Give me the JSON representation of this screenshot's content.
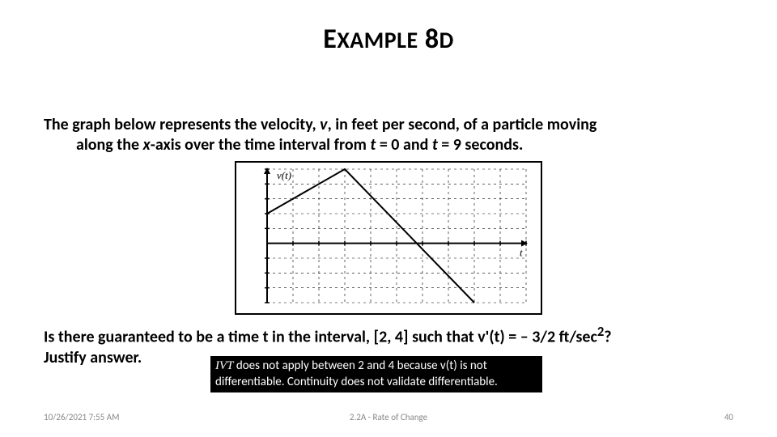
{
  "title": {
    "prefix": "E",
    "xample": "XAMPLE",
    "space": " ",
    "eight": "8",
    "d": "D"
  },
  "para1": {
    "t1": "The graph below represents the velocity, ",
    "v": "v",
    "t2": ", in feet per second, of a particle moving",
    "t3": "along the ",
    "x": "x",
    "t4": "-axis over the time interval from ",
    "t5": " = 0 and ",
    "t6": " = 9 seconds.",
    "tvar": "t"
  },
  "chart": {
    "type": "line",
    "border_color": "#000000",
    "bg_color": "#ffffff",
    "grid_color": "#000000",
    "axis_color": "#000000",
    "line_color": "#000000",
    "line_width": 2,
    "xlim": [
      0,
      10
    ],
    "ylim": [
      -4,
      5
    ],
    "x_ticks": [
      0,
      1,
      2,
      3,
      4,
      5,
      6,
      7,
      8,
      9,
      10
    ],
    "y_ticks": [
      -4,
      -3,
      -2,
      -1,
      0,
      1,
      2,
      3,
      4,
      5
    ],
    "x_label": "t",
    "y_axis_label": "v(t)",
    "points": [
      {
        "x": 0,
        "y": 2
      },
      {
        "x": 3,
        "y": 5
      },
      {
        "x": 8,
        "y": -4
      }
    ]
  },
  "para2": {
    "t1": "Is there guaranteed to be a time t in the interval, [2, 4] such that ",
    "vprime": "v'",
    "t2": "(t) = – 3/2 ft/sec",
    "sq": "2",
    "t3": "?",
    "t4": "Justify answer."
  },
  "answer": {
    "ivt": "IVT",
    "line1": " does not apply between 2 and 4 because v(t) is not",
    "line2": "differentiable. Continuity does not validate differentiable."
  },
  "footer": {
    "date": "10/26/2021 7:55 AM",
    "center": "2.2A - Rate of Change",
    "page": "40"
  }
}
